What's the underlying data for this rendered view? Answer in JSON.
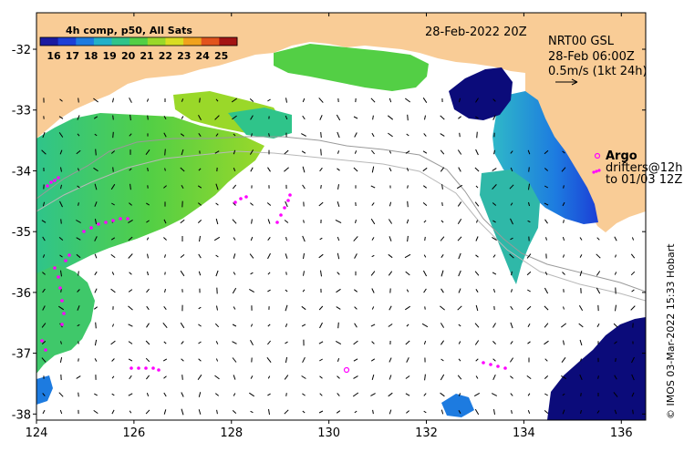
{
  "colorbar": {
    "title": "4h comp, p50, All Sats",
    "ticks": [
      "16",
      "17",
      "18",
      "19",
      "20",
      "21",
      "22",
      "23",
      "24",
      "25"
    ],
    "colors": [
      "#1a1aa0",
      "#1c3fd6",
      "#1d7be0",
      "#22b0c8",
      "#2fc48a",
      "#53cf45",
      "#9ad829",
      "#d9dd22",
      "#f0a21c",
      "#e2531c",
      "#a31414"
    ]
  },
  "header": {
    "date": "28-Feb-2022 20Z"
  },
  "current_info": {
    "model": "NRT00 GSL",
    "time": "28-Feb 06:00Z",
    "scale": "0.5m/s (1kt 24h)"
  },
  "legend": {
    "argo_label": "Argo",
    "drifters_line1": "drifters@12h",
    "drifters_line2": "to 01/03 12Z"
  },
  "credit": "© IMOS 03-Mar-2022 15:33 Hobart",
  "axes": {
    "x_ticks": [
      "124",
      "126",
      "128",
      "130",
      "132",
      "134",
      "136"
    ],
    "y_ticks": [
      "-32",
      "-33",
      "-34",
      "-35",
      "-36",
      "-37",
      "-38"
    ],
    "lon_range": [
      124,
      136.5
    ],
    "lat_range": [
      -38.1,
      -31.4
    ]
  },
  "colors": {
    "land": "#f9cc96",
    "drifter": "#ff00ff",
    "cold": "#0b0b7a"
  }
}
